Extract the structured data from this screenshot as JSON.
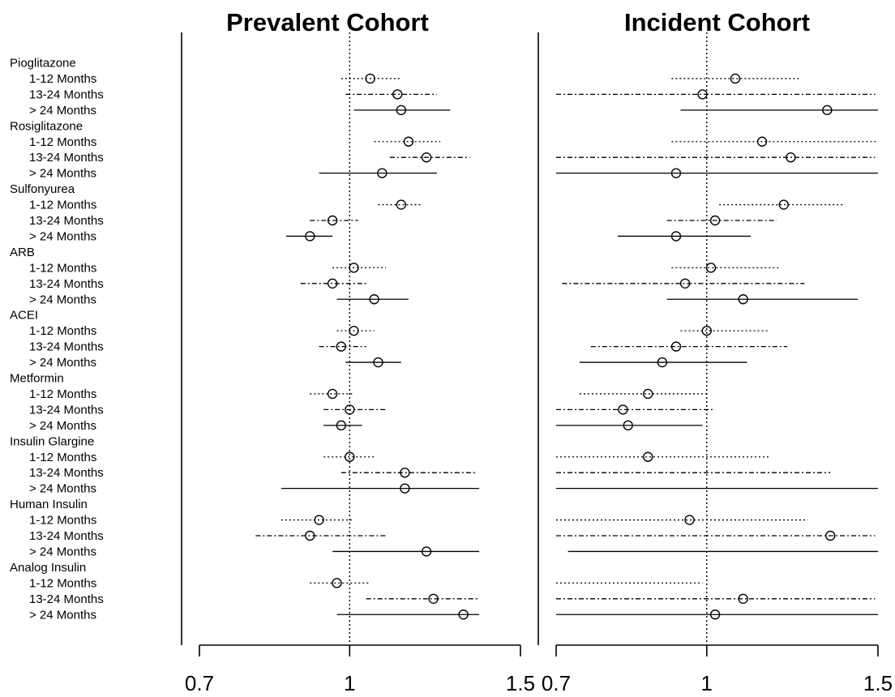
{
  "chart_data": {
    "type": "forest",
    "panels": [
      {
        "title": "Prevalent Cohort",
        "xlim": [
          0.7,
          1.5
        ],
        "scale": "log",
        "reference_line": 1,
        "ticks": [
          "0.7",
          "1",
          "1.5"
        ]
      },
      {
        "title": "Incident Cohort",
        "xlim": [
          0.7,
          1.5
        ],
        "scale": "log",
        "reference_line": 1,
        "ticks": [
          "0.7",
          "1",
          "1.5"
        ]
      }
    ],
    "line_styles": {
      "1-12 Months": "dotted",
      "13-24 Months": "dashdot",
      "> 24 Months": "solid"
    },
    "groups": [
      {
        "drug": "Pioglitazone",
        "rows": [
          {
            "label": "1-12 Months",
            "prevalent": [
              1.05,
              0.98,
              1.13
            ],
            "incident": [
              1.07,
              0.92,
              1.25
            ]
          },
          {
            "label": "13-24 Months",
            "prevalent": [
              1.12,
              0.99,
              1.23
            ],
            "incident": [
              0.99,
              0.7,
              1.49
            ]
          },
          {
            "label": "> 24 Months",
            "prevalent": [
              1.13,
              1.01,
              1.27
            ],
            "incident": [
              1.33,
              0.94,
              1.5
            ]
          }
        ]
      },
      {
        "drug": "Rosiglitazone",
        "rows": [
          {
            "label": "1-12 Months",
            "prevalent": [
              1.15,
              1.06,
              1.24
            ],
            "incident": [
              1.14,
              0.92,
              1.5
            ]
          },
          {
            "label": "13-24 Months",
            "prevalent": [
              1.2,
              1.1,
              1.33
            ],
            "incident": [
              1.22,
              0.7,
              1.49
            ]
          },
          {
            "label": "> 24 Months",
            "prevalent": [
              1.08,
              0.93,
              1.23
            ],
            "incident": [
              0.93,
              0.7,
              1.5
            ]
          }
        ]
      },
      {
        "drug": "Sulfonyurea",
        "rows": [
          {
            "label": "1-12 Months",
            "prevalent": [
              1.13,
              1.07,
              1.19
            ],
            "incident": [
              1.2,
              1.03,
              1.38
            ]
          },
          {
            "label": "13-24 Months",
            "prevalent": [
              0.96,
              0.91,
              1.02
            ],
            "incident": [
              1.02,
              0.91,
              1.18
            ]
          },
          {
            "label": "> 24 Months",
            "prevalent": [
              0.91,
              0.86,
              0.96
            ],
            "incident": [
              0.93,
              0.81,
              1.11
            ]
          }
        ]
      },
      {
        "drug": "ARB",
        "rows": [
          {
            "label": "1-12 Months",
            "prevalent": [
              1.01,
              0.96,
              1.09
            ],
            "incident": [
              1.01,
              0.92,
              1.19
            ]
          },
          {
            "label": "13-24 Months",
            "prevalent": [
              0.96,
              0.89,
              1.04
            ],
            "incident": [
              0.95,
              0.71,
              1.26
            ]
          },
          {
            "label": "> 24 Months",
            "prevalent": [
              1.06,
              0.97,
              1.15
            ],
            "incident": [
              1.09,
              0.91,
              1.43
            ]
          }
        ]
      },
      {
        "drug": "ACEI",
        "rows": [
          {
            "label": "1-12 Months",
            "prevalent": [
              1.01,
              0.97,
              1.06
            ],
            "incident": [
              1.0,
              0.94,
              1.16
            ]
          },
          {
            "label": "13-24 Months",
            "prevalent": [
              0.98,
              0.93,
              1.04
            ],
            "incident": [
              0.93,
              0.76,
              1.21
            ]
          },
          {
            "label": "> 24 Months",
            "prevalent": [
              1.07,
              0.99,
              1.13
            ],
            "incident": [
              0.9,
              0.74,
              1.1
            ]
          }
        ]
      },
      {
        "drug": "Metformin",
        "rows": [
          {
            "label": "1-12 Months",
            "prevalent": [
              0.96,
              0.91,
              1.01
            ],
            "incident": [
              0.87,
              0.74,
              1.0
            ]
          },
          {
            "label": "13-24 Months",
            "prevalent": [
              1.0,
              0.94,
              1.09
            ],
            "incident": [
              0.82,
              0.7,
              1.02
            ]
          },
          {
            "label": "> 24 Months",
            "prevalent": [
              0.98,
              0.94,
              1.03
            ],
            "incident": [
              0.83,
              0.7,
              0.99
            ]
          }
        ]
      },
      {
        "drug": "Insulin Glargine",
        "rows": [
          {
            "label": "1-12 Months",
            "prevalent": [
              1.0,
              0.94,
              1.06
            ],
            "incident": [
              0.87,
              0.7,
              1.16
            ]
          },
          {
            "label": "13-24 Months",
            "prevalent": [
              1.14,
              0.98,
              1.35
            ],
            "incident": [
              0.7,
              0.7,
              1.34
            ]
          },
          {
            "label": "> 24 Months",
            "prevalent": [
              1.14,
              0.85,
              1.36
            ],
            "incident": [
              0.7,
              0.7,
              1.5
            ]
          }
        ]
      },
      {
        "drug": "Human Insulin",
        "rows": [
          {
            "label": "1-12 Months",
            "prevalent": [
              0.93,
              0.85,
              1.01
            ],
            "incident": [
              0.96,
              0.7,
              1.27
            ]
          },
          {
            "label": "13-24 Months",
            "prevalent": [
              0.91,
              0.8,
              1.09
            ],
            "incident": [
              1.34,
              0.7,
              1.49
            ]
          },
          {
            "label": "> 24 Months",
            "prevalent": [
              1.2,
              0.96,
              1.36
            ],
            "incident": [
              0.7,
              0.72,
              1.5
            ]
          }
        ]
      },
      {
        "drug": "Analog Insulin",
        "rows": [
          {
            "label": "1-12 Months",
            "prevalent": [
              0.97,
              0.91,
              1.05
            ],
            "incident": [
              0.7,
              0.7,
              0.99
            ]
          },
          {
            "label": "13-24 Months",
            "prevalent": [
              1.22,
              1.04,
              1.36
            ],
            "incident": [
              1.09,
              0.7,
              1.49
            ]
          },
          {
            "label": "> 24 Months",
            "prevalent": [
              1.31,
              0.97,
              1.36
            ],
            "incident": [
              1.02,
              0.7,
              1.5
            ]
          }
        ]
      }
    ]
  }
}
